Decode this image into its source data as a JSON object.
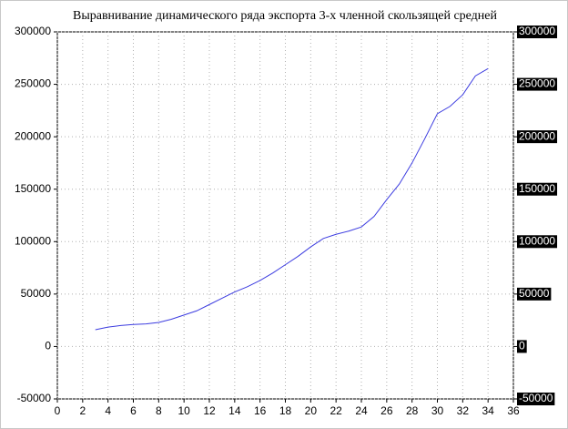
{
  "chart_data": {
    "type": "line",
    "title": "Выравнивание динамического ряда экспорта 3-х членной скользящей средней",
    "x": [
      3,
      4,
      5,
      6,
      7,
      8,
      9,
      10,
      11,
      12,
      13,
      14,
      15,
      16,
      17,
      18,
      19,
      20,
      21,
      22,
      23,
      24,
      25,
      26,
      27,
      28,
      29,
      30,
      31,
      32,
      33,
      34
    ],
    "values": [
      16000,
      18500,
      20000,
      21000,
      21500,
      23000,
      26000,
      30000,
      34000,
      40000,
      46000,
      52000,
      57000,
      63000,
      70000,
      78000,
      86000,
      95000,
      103000,
      107000,
      110000,
      114000,
      124000,
      140000,
      155000,
      175000,
      198000,
      222000,
      229000,
      240000,
      258000,
      265000
    ],
    "color": "#3c3ce0",
    "xlim": [
      0,
      36
    ],
    "xticks": [
      0,
      2,
      4,
      6,
      8,
      10,
      12,
      14,
      16,
      18,
      20,
      22,
      24,
      26,
      28,
      30,
      32,
      34,
      36
    ],
    "ylim": [
      -50000,
      300000
    ],
    "yticks": [
      -50000,
      0,
      50000,
      100000,
      150000,
      200000,
      250000,
      300000
    ],
    "y2lim": [
      -50000,
      300000
    ],
    "y2ticks": [
      -50000,
      0,
      50000,
      100000,
      150000,
      200000,
      250000,
      300000
    ],
    "grid": true
  }
}
